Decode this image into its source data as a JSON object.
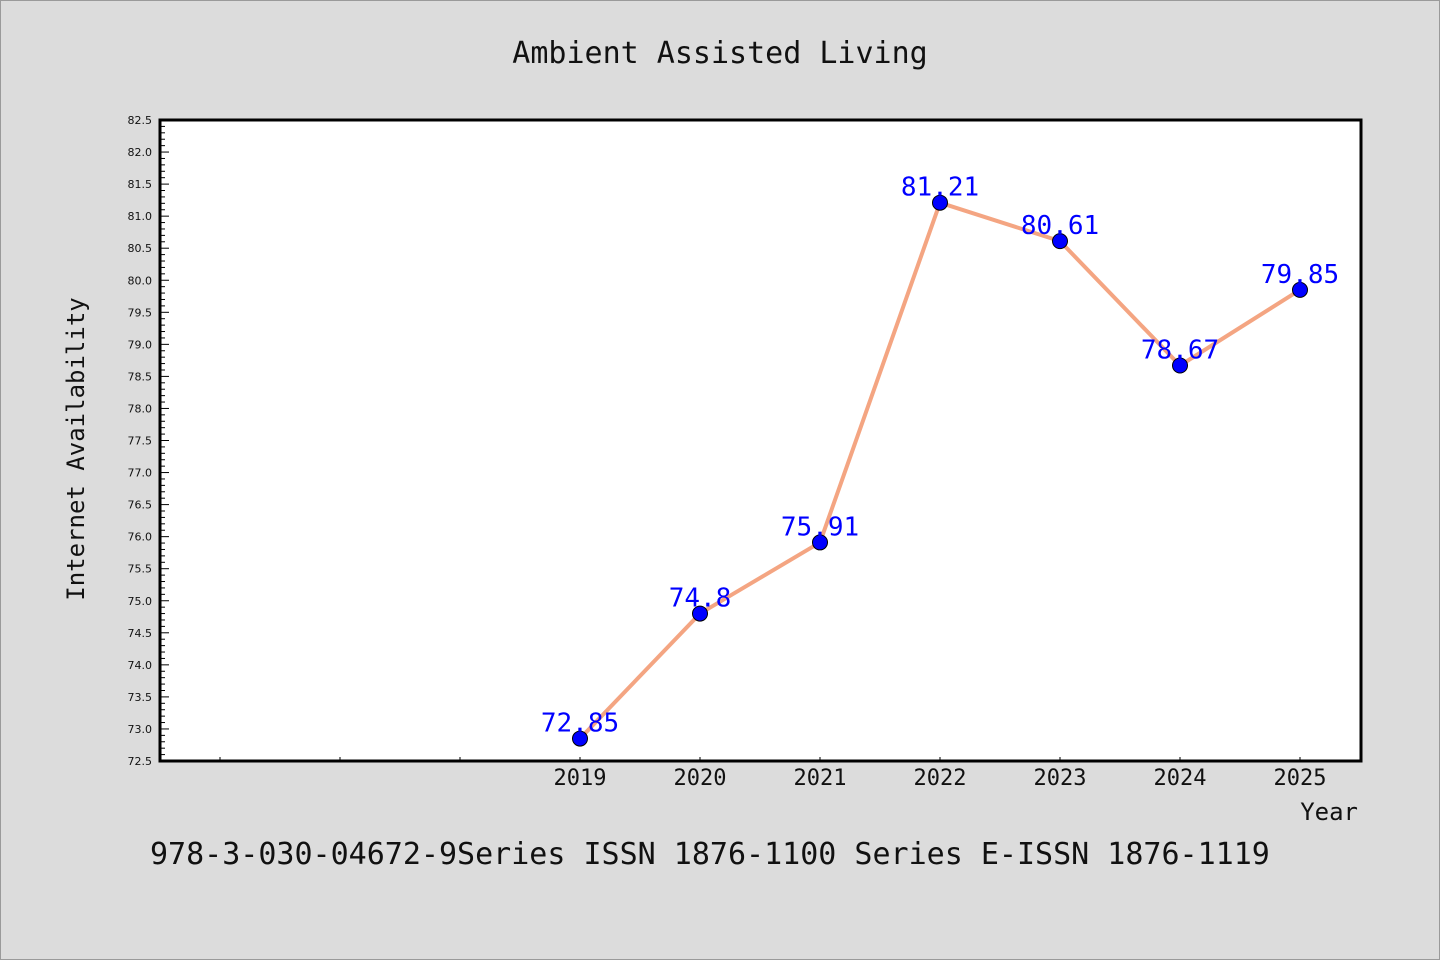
{
  "chart_data": {
    "type": "line",
    "title": "Ambient Assisted Living",
    "xlabel": "Year",
    "ylabel": "Internet Availability",
    "categories": [
      "2019",
      "2020",
      "2021",
      "2022",
      "2023",
      "2024",
      "2025"
    ],
    "values": [
      72.85,
      74.8,
      75.91,
      81.21,
      80.61,
      78.67,
      79.85
    ],
    "data_labels": [
      "72.85",
      "74.8",
      "75.91",
      "81.21",
      "80.61",
      "78.67",
      "79.85"
    ],
    "ylim": [
      72.5,
      82.5
    ],
    "yticks": [
      "72.5",
      "73.0",
      "73.5",
      "74.0",
      "74.5",
      "75.0",
      "75.5",
      "76.0",
      "76.5",
      "77.0",
      "77.5",
      "78.0",
      "78.5",
      "79.0",
      "79.5",
      "80.0",
      "80.5",
      "81.0",
      "81.5",
      "82.0",
      "82.5"
    ],
    "grid": false,
    "colors": {
      "line": "#f4a582",
      "marker": "#0000ff",
      "label": "#0000ff"
    }
  },
  "footer": "978-3-030-04672-9Series ISSN 1876-1100 Series E-ISSN 1876-1119"
}
